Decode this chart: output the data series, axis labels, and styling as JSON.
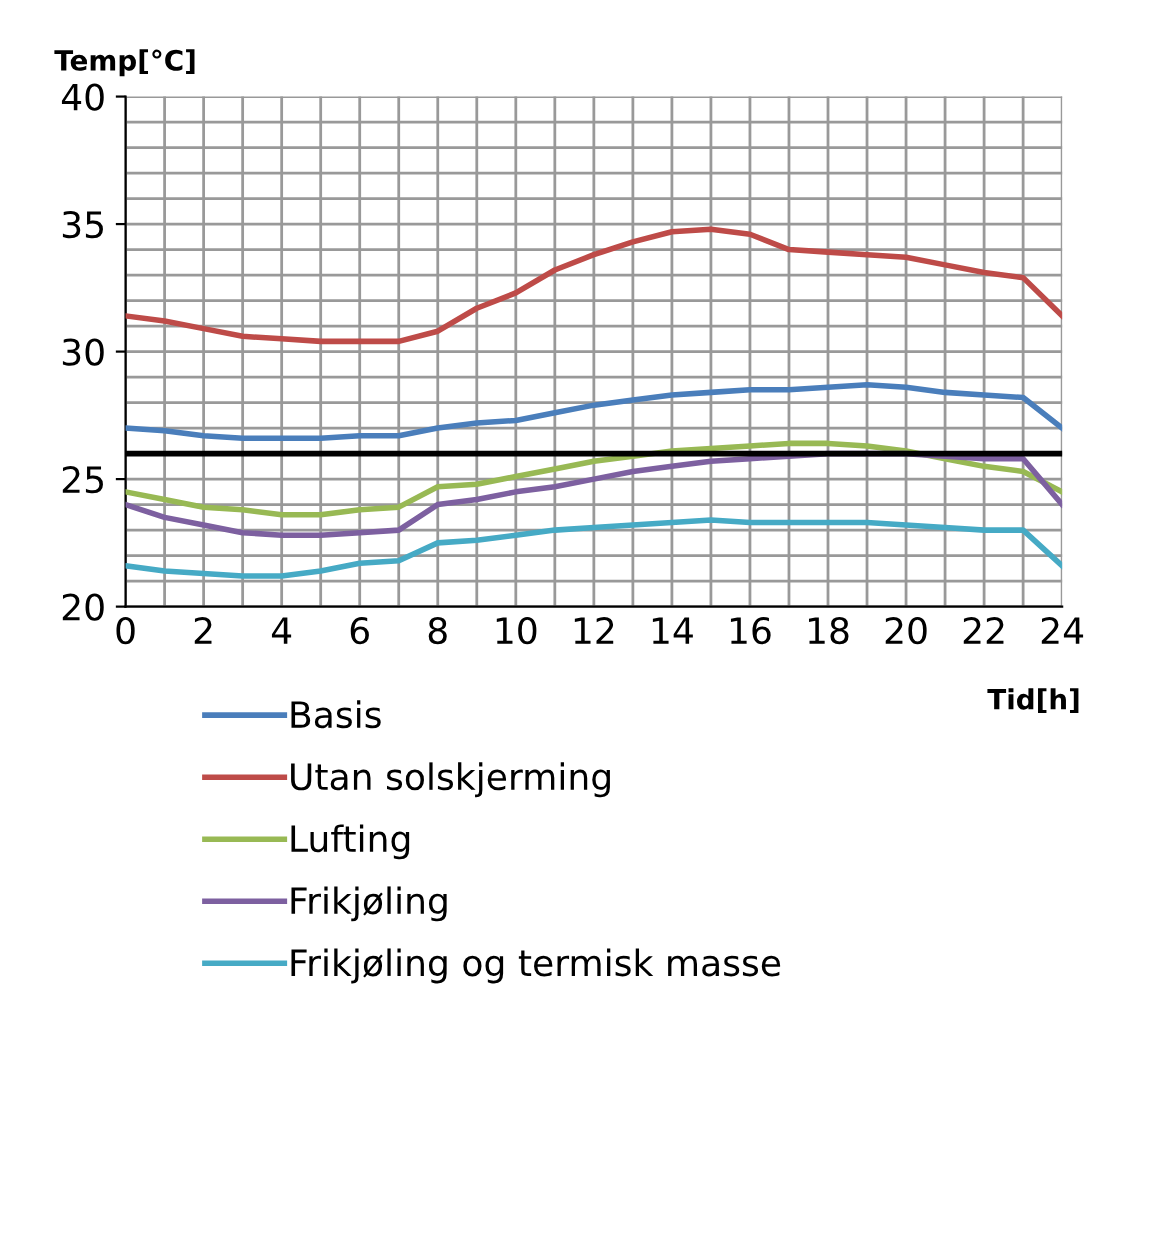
{
  "chart_data": {
    "type": "line",
    "ylabel": "Temp[°C]",
    "xlabel": "Tid[h]",
    "x": [
      0,
      1,
      2,
      3,
      4,
      5,
      6,
      7,
      8,
      9,
      10,
      11,
      12,
      13,
      14,
      15,
      16,
      17,
      18,
      19,
      20,
      21,
      22,
      23,
      24
    ],
    "xlim": [
      0,
      24
    ],
    "xticks": [
      0,
      2,
      4,
      6,
      8,
      10,
      12,
      14,
      16,
      18,
      20,
      22,
      24
    ],
    "ylim": [
      20,
      40
    ],
    "yticks": [
      20,
      25,
      30,
      35,
      40
    ],
    "grid": true,
    "legend": "bottom",
    "marker": "none",
    "line_style": "solid",
    "ref_lines": [
      {
        "axis": "y",
        "value": 26,
        "color": "#000000"
      }
    ],
    "series": [
      {
        "name": "Basis",
        "color": "#4a7ebb",
        "values": [
          27.0,
          26.9,
          26.7,
          26.6,
          26.6,
          26.6,
          26.7,
          26.7,
          27.0,
          27.2,
          27.3,
          27.6,
          27.9,
          28.1,
          28.3,
          28.4,
          28.5,
          28.5,
          28.6,
          28.7,
          28.6,
          28.4,
          28.3,
          28.2,
          27.0
        ]
      },
      {
        "name": "Utan solskjerming",
        "color": "#be4b48",
        "values": [
          31.4,
          31.2,
          30.9,
          30.6,
          30.5,
          30.4,
          30.4,
          30.4,
          30.8,
          31.7,
          32.3,
          33.2,
          33.8,
          34.3,
          34.7,
          34.8,
          34.6,
          34.0,
          33.9,
          33.8,
          33.7,
          33.4,
          33.1,
          32.9,
          31.4
        ]
      },
      {
        "name": "Lufting",
        "color": "#98b954",
        "values": [
          24.5,
          24.2,
          23.9,
          23.8,
          23.6,
          23.6,
          23.8,
          23.9,
          24.7,
          24.8,
          25.1,
          25.4,
          25.7,
          25.9,
          26.1,
          26.2,
          26.3,
          26.4,
          26.4,
          26.3,
          26.1,
          25.8,
          25.5,
          25.3,
          24.5
        ]
      },
      {
        "name": "Frikjøling",
        "color": "#7d60a0",
        "values": [
          24.0,
          23.5,
          23.2,
          22.9,
          22.8,
          22.8,
          22.9,
          23.0,
          24.0,
          24.2,
          24.5,
          24.7,
          25.0,
          25.3,
          25.5,
          25.7,
          25.8,
          25.9,
          26.0,
          26.0,
          26.0,
          25.9,
          25.8,
          25.8,
          24.0
        ]
      },
      {
        "name": "Frikjøling og termisk masse",
        "color": "#46aac5",
        "values": [
          21.6,
          21.4,
          21.3,
          21.2,
          21.2,
          21.4,
          21.7,
          21.8,
          22.5,
          22.6,
          22.8,
          23.0,
          23.1,
          23.2,
          23.3,
          23.4,
          23.3,
          23.3,
          23.3,
          23.3,
          23.2,
          23.1,
          23.0,
          23.0,
          21.6
        ]
      }
    ]
  }
}
